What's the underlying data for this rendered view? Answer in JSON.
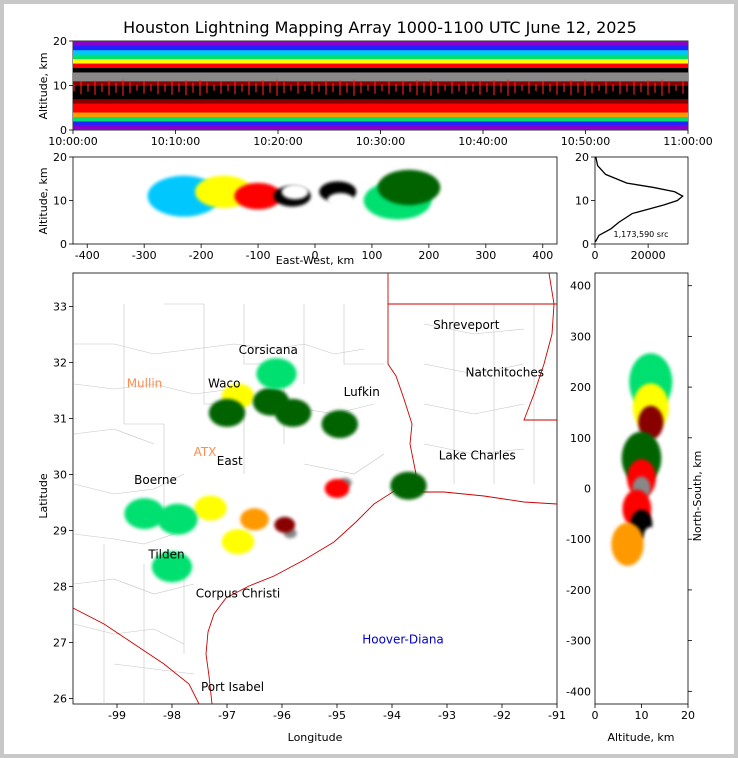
{
  "title": "Houston Lightning Mapping Array 1000-1100 UTC June 12, 2025",
  "colors": {
    "scale": [
      "#8800cc",
      "#2222ff",
      "#00c8ff",
      "#00e070",
      "#006400",
      "#ffff00",
      "#ff9900",
      "#ff0000",
      "#880000",
      "#000000",
      "#888888",
      "#ffffff"
    ],
    "state_border": "#cc0000",
    "county_border": "#bbbbbb",
    "coast": "#cc0000"
  },
  "chart_data": [
    {
      "type": "heatmap",
      "id": "time-altitude",
      "ylabel": "Altitude, km",
      "xlim": [
        "10:00:00",
        "11:00:00"
      ],
      "ylim": [
        0,
        20
      ],
      "x_ticks": [
        "10:00:00",
        "10:10:00",
        "10:20:00",
        "10:30:00",
        "10:40:00",
        "10:50:00",
        "11:00:00"
      ],
      "y_ticks": [
        0,
        10,
        20
      ],
      "bands": [
        {
          "alt": 1,
          "level": 0
        },
        {
          "alt": 2,
          "level": 1
        },
        {
          "alt": 3,
          "level": 3
        },
        {
          "alt": 4,
          "level": 6
        },
        {
          "alt": 5,
          "level": 7
        },
        {
          "alt": 6,
          "level": 7
        },
        {
          "alt": 7,
          "level": 8
        },
        {
          "alt": 8,
          "level": 9
        },
        {
          "alt": 9,
          "level": 9
        },
        {
          "alt": 10,
          "level": 9
        },
        {
          "alt": 11,
          "level": 8
        },
        {
          "alt": 12,
          "level": 10
        },
        {
          "alt": 13,
          "level": 10
        },
        {
          "alt": 14,
          "level": 9
        },
        {
          "alt": 15,
          "level": 7
        },
        {
          "alt": 16,
          "level": 5
        },
        {
          "alt": 17,
          "level": 3
        },
        {
          "alt": 18,
          "level": 2
        },
        {
          "alt": 19,
          "level": 1
        },
        {
          "alt": 20,
          "level": 0
        }
      ]
    },
    {
      "type": "heatmap",
      "id": "ew-altitude",
      "xlabel": "East-West, km",
      "ylabel": "Altitude, km",
      "xlim": [
        -425,
        425
      ],
      "ylim": [
        0,
        20
      ],
      "x_ticks": [
        -400,
        -300,
        -200,
        -100,
        0,
        100,
        200,
        300,
        400
      ],
      "y_ticks": [
        0,
        10,
        20
      ],
      "blobs": [
        {
          "x": -230,
          "alt": 11,
          "level": 2
        },
        {
          "x": -160,
          "alt": 12,
          "level": 5
        },
        {
          "x": -100,
          "alt": 11,
          "level": 7
        },
        {
          "x": -40,
          "alt": 11,
          "level": 9
        },
        {
          "x": -35,
          "alt": 12,
          "level": 11
        },
        {
          "x": 40,
          "alt": 12,
          "level": 9
        },
        {
          "x": 45,
          "alt": 10,
          "level": 11
        },
        {
          "x": 145,
          "alt": 10,
          "level": 3
        },
        {
          "x": 165,
          "alt": 13,
          "level": 4
        }
      ]
    },
    {
      "type": "line",
      "id": "altitude-histogram",
      "xlim": [
        0,
        35000
      ],
      "ylim": [
        0,
        20
      ],
      "x_ticks": [
        0,
        20000
      ],
      "y_ticks": [
        0,
        10,
        20
      ],
      "annotation": "1,173,590 src",
      "x": [
        150,
        1500,
        6000,
        9000,
        14000,
        20000,
        26000,
        31000,
        33000,
        30000,
        22000,
        12000,
        4000,
        1000,
        300
      ],
      "y": [
        0.5,
        2,
        3.5,
        5,
        7,
        8,
        9,
        10,
        11,
        12,
        13,
        14,
        16,
        18,
        20
      ]
    },
    {
      "type": "scatter",
      "id": "plan-view",
      "xlabel": "Longitude",
      "ylabel": "Latitude",
      "xlim": [
        -99.8,
        -91
      ],
      "ylim": [
        25.9,
        33.6
      ],
      "x_ticks": [
        -99,
        -98,
        -97,
        -96,
        -95,
        -94,
        -93,
        -92,
        -91
      ],
      "y_ticks": [
        26,
        27,
        28,
        29,
        30,
        31,
        32,
        33
      ],
      "cells": [
        {
          "lon": -95.85,
          "lat": 28.95,
          "level": 10
        },
        {
          "lon": -95.95,
          "lat": 29.1,
          "level": 8
        },
        {
          "lon": -96.5,
          "lat": 29.2,
          "level": 6
        },
        {
          "lon": -96.8,
          "lat": 28.8,
          "level": 5
        },
        {
          "lon": -94.85,
          "lat": 29.85,
          "level": 10
        },
        {
          "lon": -95.0,
          "lat": 29.75,
          "level": 7
        },
        {
          "lon": -97.3,
          "lat": 29.4,
          "level": 5
        },
        {
          "lon": -97.9,
          "lat": 29.2,
          "level": 3
        },
        {
          "lon": -98.5,
          "lat": 29.3,
          "level": 3
        },
        {
          "lon": -96.8,
          "lat": 31.4,
          "level": 5
        },
        {
          "lon": -97.0,
          "lat": 31.1,
          "level": 4
        },
        {
          "lon": -96.2,
          "lat": 31.3,
          "level": 4
        },
        {
          "lon": -95.8,
          "lat": 31.1,
          "level": 4
        },
        {
          "lon": -96.1,
          "lat": 31.8,
          "level": 3
        },
        {
          "lon": -94.95,
          "lat": 30.9,
          "level": 4
        },
        {
          "lon": -93.7,
          "lat": 29.8,
          "level": 4
        },
        {
          "lon": -98.0,
          "lat": 28.35,
          "level": 3
        }
      ],
      "labels": [
        {
          "text": "Shreveport",
          "lon": -92.65,
          "lat": 32.6,
          "color": "#000000"
        },
        {
          "text": "Natchitoches",
          "lon": -91.95,
          "lat": 31.75,
          "color": "#000000"
        },
        {
          "text": "Corsicana",
          "lon": -96.25,
          "lat": 32.15,
          "color": "#000000"
        },
        {
          "text": "Mullin",
          "lon": -98.5,
          "lat": 31.55,
          "color": "#ff8c50"
        },
        {
          "text": "Waco",
          "lon": -97.05,
          "lat": 31.55,
          "color": "#000000"
        },
        {
          "text": "Lufkin",
          "lon": -94.55,
          "lat": 31.4,
          "color": "#000000"
        },
        {
          "text": "ATX",
          "lon": -97.4,
          "lat": 30.33,
          "color": "#ff8c50"
        },
        {
          "text": "East",
          "lon": -96.95,
          "lat": 30.17,
          "color": "#000000"
        },
        {
          "text": "Lake Charles",
          "lon": -92.45,
          "lat": 30.27,
          "color": "#000000"
        },
        {
          "text": "Boerne",
          "lon": -98.3,
          "lat": 29.83,
          "color": "#000000"
        },
        {
          "text": "Tilden",
          "lon": -98.1,
          "lat": 28.5,
          "color": "#000000"
        },
        {
          "text": "Corpus Christi",
          "lon": -96.8,
          "lat": 27.8,
          "color": "#000000"
        },
        {
          "text": "Hoover-Diana",
          "lon": -93.8,
          "lat": 26.98,
          "color": "#0000cc"
        },
        {
          "text": "Port Isabel",
          "lon": -96.9,
          "lat": 26.13,
          "color": "#000000"
        }
      ]
    },
    {
      "type": "heatmap",
      "id": "altitude-ns",
      "xlabel": "Altitude, km",
      "ylabel": "North-South, km",
      "xlim": [
        0,
        20
      ],
      "ylim": [
        -425,
        425
      ],
      "x_ticks": [
        0,
        10,
        20
      ],
      "y_ticks": [
        -400,
        -300,
        -200,
        -100,
        0,
        100,
        200,
        300,
        400
      ],
      "blobs": [
        {
          "alt": 12,
          "ns": 210,
          "level": 3
        },
        {
          "alt": 12,
          "ns": 160,
          "level": 5
        },
        {
          "alt": 12,
          "ns": 130,
          "level": 8
        },
        {
          "alt": 10,
          "ns": 60,
          "level": 4
        },
        {
          "alt": 10,
          "ns": 20,
          "level": 7
        },
        {
          "alt": 10,
          "ns": 0,
          "level": 10
        },
        {
          "alt": 9,
          "ns": -40,
          "level": 7
        },
        {
          "alt": 10,
          "ns": -70,
          "level": 9
        },
        {
          "alt": 12,
          "ns": -95,
          "level": 11
        },
        {
          "alt": 7,
          "ns": -110,
          "level": 6
        }
      ]
    }
  ]
}
